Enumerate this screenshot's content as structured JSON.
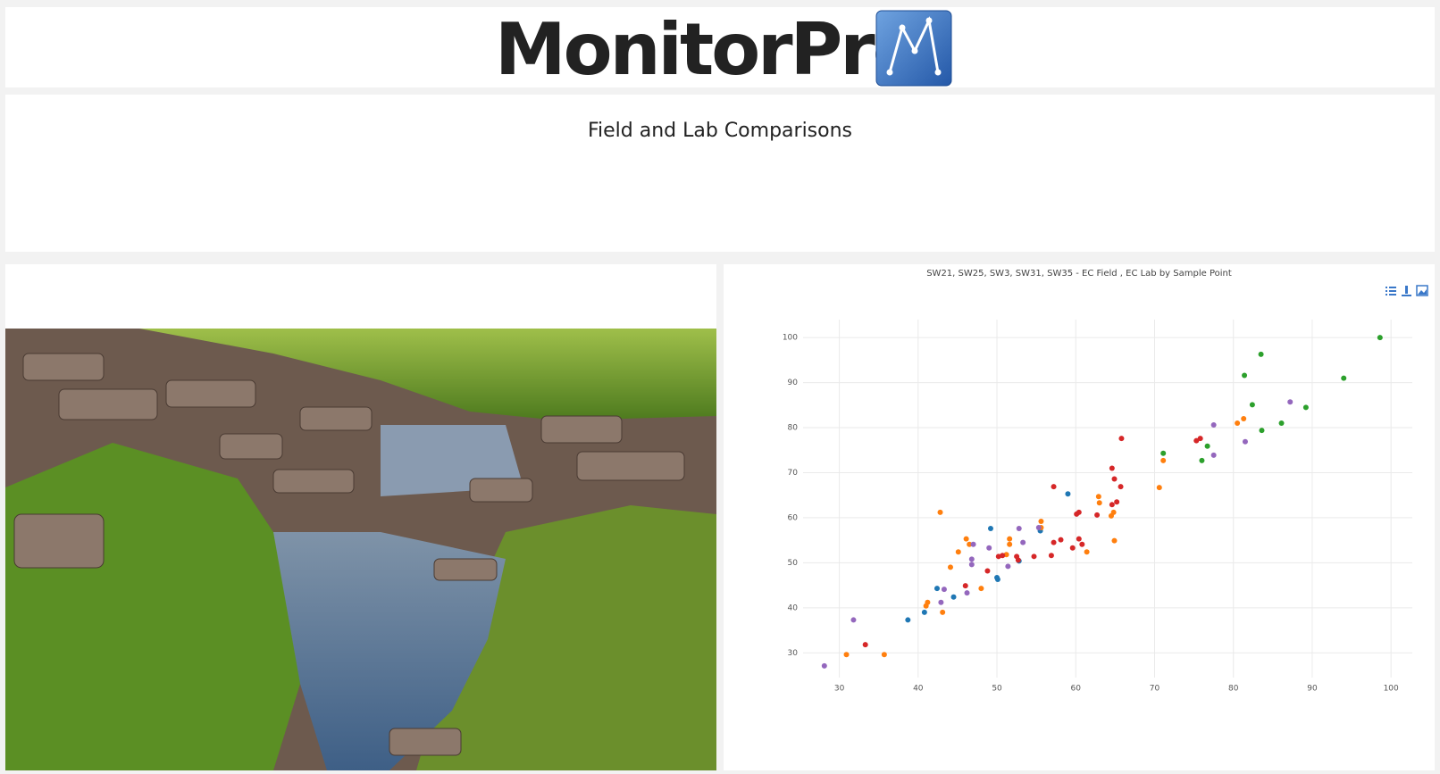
{
  "header": {
    "logo_text": "MonitorPro",
    "page_title": "Field and Lab Comparisons"
  },
  "chart_data": {
    "type": "scatter",
    "title": "SW21, SW25, SW3, SW31, SW35 - EC Field , EC Lab by Sample Point",
    "xlim": [
      25.4,
      102.7
    ],
    "ylim": [
      24.5,
      104
    ],
    "xticks": [
      30,
      40,
      50,
      60,
      70,
      80,
      90,
      100
    ],
    "yticks": [
      30,
      40,
      50,
      60,
      70,
      80,
      90,
      100
    ],
    "grid": true,
    "series": [
      {
        "color": "#1f77b4",
        "x": [
          59.0,
          49.2,
          55.5,
          52.8,
          50.1,
          50.0,
          42.4,
          44.5,
          40.8,
          38.7
        ],
        "values": [
          65.3,
          57.6,
          57.1,
          50.4,
          46.3,
          46.7,
          44.3,
          42.4,
          39.0,
          37.3
        ]
      },
      {
        "color": "#ff7f0e",
        "x": [
          42.8,
          62.9,
          63.0,
          70.6,
          71.1,
          80.5,
          81.3,
          64.5,
          55.6,
          55.6,
          64.8,
          51.6,
          51.6,
          46.1,
          46.5,
          45.1,
          51.2,
          61.4,
          64.9,
          44.1,
          48.0,
          41.2,
          41.0,
          43.1,
          30.9,
          35.7
        ],
        "values": [
          61.2,
          64.7,
          63.3,
          66.7,
          72.7,
          81.0,
          82.0,
          60.4,
          59.2,
          57.8,
          61.2,
          55.3,
          54.1,
          55.3,
          54.1,
          52.4,
          51.8,
          52.4,
          54.9,
          49.0,
          44.3,
          41.2,
          40.4,
          39.0,
          29.6,
          29.6
        ]
      },
      {
        "color": "#2ca02c",
        "x": [
          98.6,
          94.0,
          83.5,
          81.4,
          82.4,
          89.2,
          86.1,
          83.6,
          76.7,
          76.0,
          71.1
        ],
        "values": [
          100,
          91.0,
          96.3,
          91.6,
          85.1,
          84.5,
          81.0,
          79.4,
          75.9,
          72.7,
          74.3
        ]
      },
      {
        "color": "#d62728",
        "x": [
          65.8,
          75.3,
          75.8,
          64.6,
          57.2,
          64.9,
          65.7,
          65.2,
          64.6,
          60.4,
          60.1,
          62.7,
          60.4,
          58.1,
          57.2,
          59.6,
          60.8,
          56.9,
          54.7,
          52.5,
          50.7,
          50.2,
          48.8,
          52.7,
          46.0,
          33.3
        ],
        "values": [
          77.6,
          77.1,
          77.6,
          71.0,
          66.9,
          68.6,
          66.9,
          63.5,
          62.9,
          61.2,
          60.8,
          60.6,
          55.3,
          55.1,
          54.5,
          53.3,
          54.1,
          51.6,
          51.4,
          51.4,
          51.6,
          51.4,
          48.2,
          50.6,
          44.9,
          31.8
        ]
      },
      {
        "color": "#9467bd",
        "x": [
          87.2,
          77.5,
          77.5,
          81.5,
          55.3,
          52.8,
          53.3,
          49.0,
          47.0,
          46.8,
          46.8,
          51.4,
          43.3,
          46.2,
          42.9,
          31.8,
          28.1
        ],
        "values": [
          85.7,
          80.6,
          73.9,
          76.9,
          57.8,
          57.6,
          54.5,
          53.3,
          54.1,
          50.8,
          49.6,
          49.2,
          44.1,
          43.3,
          41.2,
          37.3,
          27.1
        ]
      }
    ]
  }
}
